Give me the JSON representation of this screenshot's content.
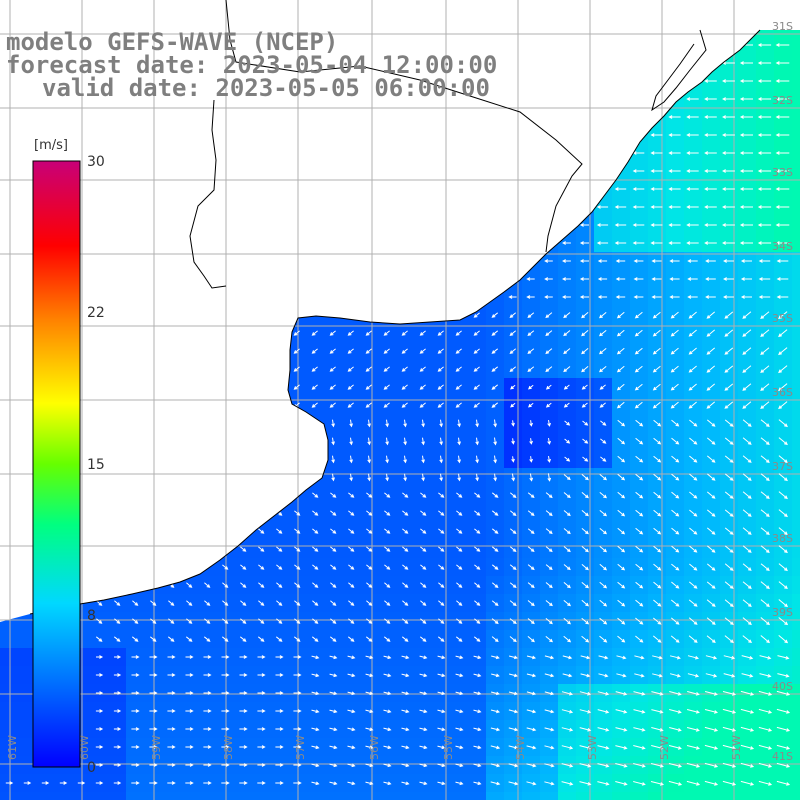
{
  "title": {
    "line1": "modelo GEFS-WAVE (NCEP)",
    "line2": "forecast date: 2023-05-04 12:00:00",
    "line3": "valid date: 2023-05-05 06:00:00"
  },
  "colorbar": {
    "unit": "[m/s]",
    "ticks": [
      "30",
      "22",
      "15",
      "8",
      "0"
    ],
    "tick_values": [
      30,
      22,
      15,
      8,
      0
    ],
    "min": 0,
    "max": 30,
    "colors": [
      "#0000ff",
      "#00ccff",
      "#00ff66",
      "#55ff00",
      "#ffff00",
      "#ff8800",
      "#ff0000",
      "#cc0066"
    ]
  },
  "map": {
    "lat_labels": [
      "31S",
      "32S",
      "33S",
      "34S",
      "35S",
      "36S",
      "37S",
      "38S",
      "39S",
      "40S",
      "41S"
    ],
    "lon_labels": [
      "61W",
      "60W",
      "59W",
      "58W",
      "57W",
      "56W",
      "55W",
      "54W",
      "53W",
      "52W",
      "51W"
    ],
    "land_color": "#ffffff",
    "grid_color": "#b0b0b0",
    "coast_color": "#000000",
    "arrow_color": "#ffffff"
  }
}
